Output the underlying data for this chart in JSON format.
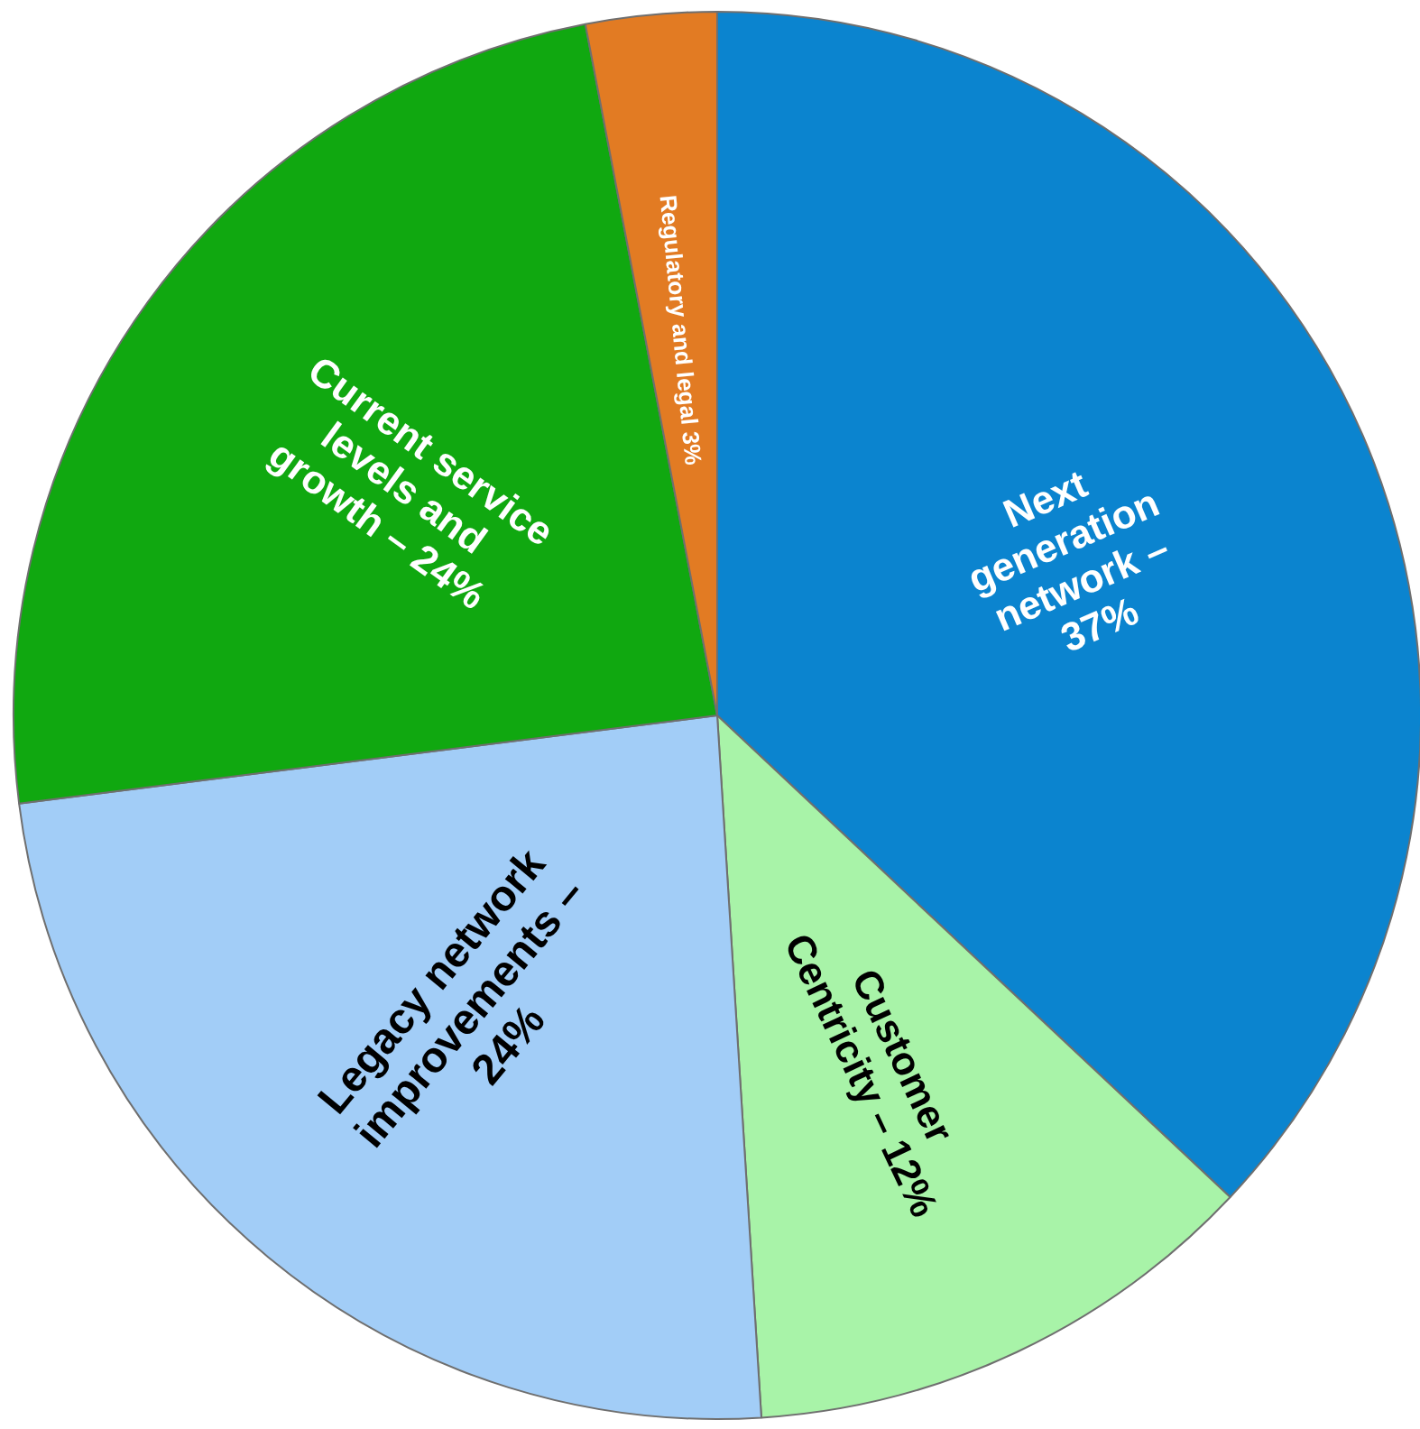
{
  "chart_data": {
    "type": "pie",
    "categories": [
      "Next generation network – 37%",
      "Customer Centricity – 12%",
      "Legacy network improvements – 24%",
      "Current service levels and growth – 24%",
      "Regulatory and legal 3%"
    ],
    "values": [
      37,
      12,
      24,
      24,
      3
    ],
    "colors": [
      "#0b84cf",
      "#a8f3a8",
      "#a2cdf7",
      "#10a810",
      "#e27b23"
    ]
  }
}
